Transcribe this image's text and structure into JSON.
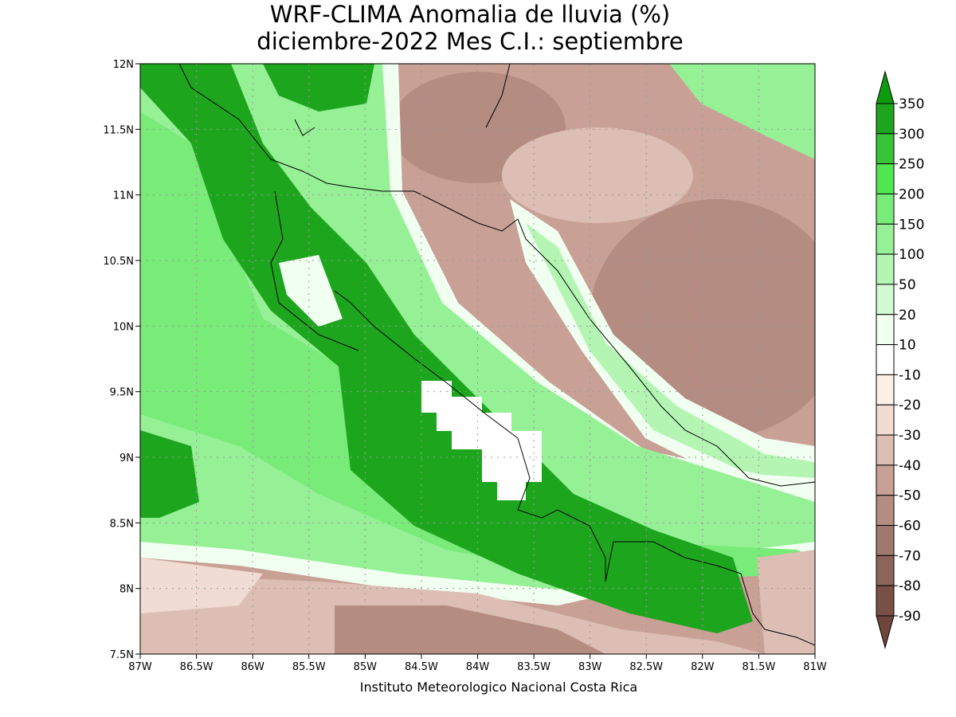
{
  "title": [
    "WRF-CLIMA Anomalia de lluvia (%)",
    "diciembre-2022 Mes C.I.: septiembre"
  ],
  "map": {
    "lon_ticks": [
      "87W",
      "86.5W",
      "86W",
      "85.5W",
      "85W",
      "84.5W",
      "84W",
      "83.5W",
      "83W",
      "82.5W",
      "82W",
      "81.5W",
      "81W"
    ],
    "lat_ticks": [
      "12N",
      "11.5N",
      "11N",
      "10.5N",
      "10N",
      "9.5N",
      "9N",
      "8.5N",
      "8N",
      "7.5N"
    ]
  },
  "colorbar": {
    "levels": [
      350,
      300,
      250,
      200,
      150,
      100,
      50,
      20,
      10,
      -10,
      -20,
      -30,
      -40,
      -50,
      -60,
      -70,
      -80,
      -90
    ],
    "colors": [
      "#0f9b0f",
      "#1ea51e",
      "#37c437",
      "#50e650",
      "#78eb78",
      "#96f096",
      "#b4f5b4",
      "#d2fad2",
      "#f0fff0",
      "#ffffff",
      "#faf0e6",
      "#f0dcd2",
      "#dcbeb4",
      "#c8a096",
      "#b48c82",
      "#a0786e",
      "#8c645a",
      "#785046",
      "#6e463c"
    ]
  },
  "footer": "Instituto Meteorologico Nacional Costa Rica"
}
